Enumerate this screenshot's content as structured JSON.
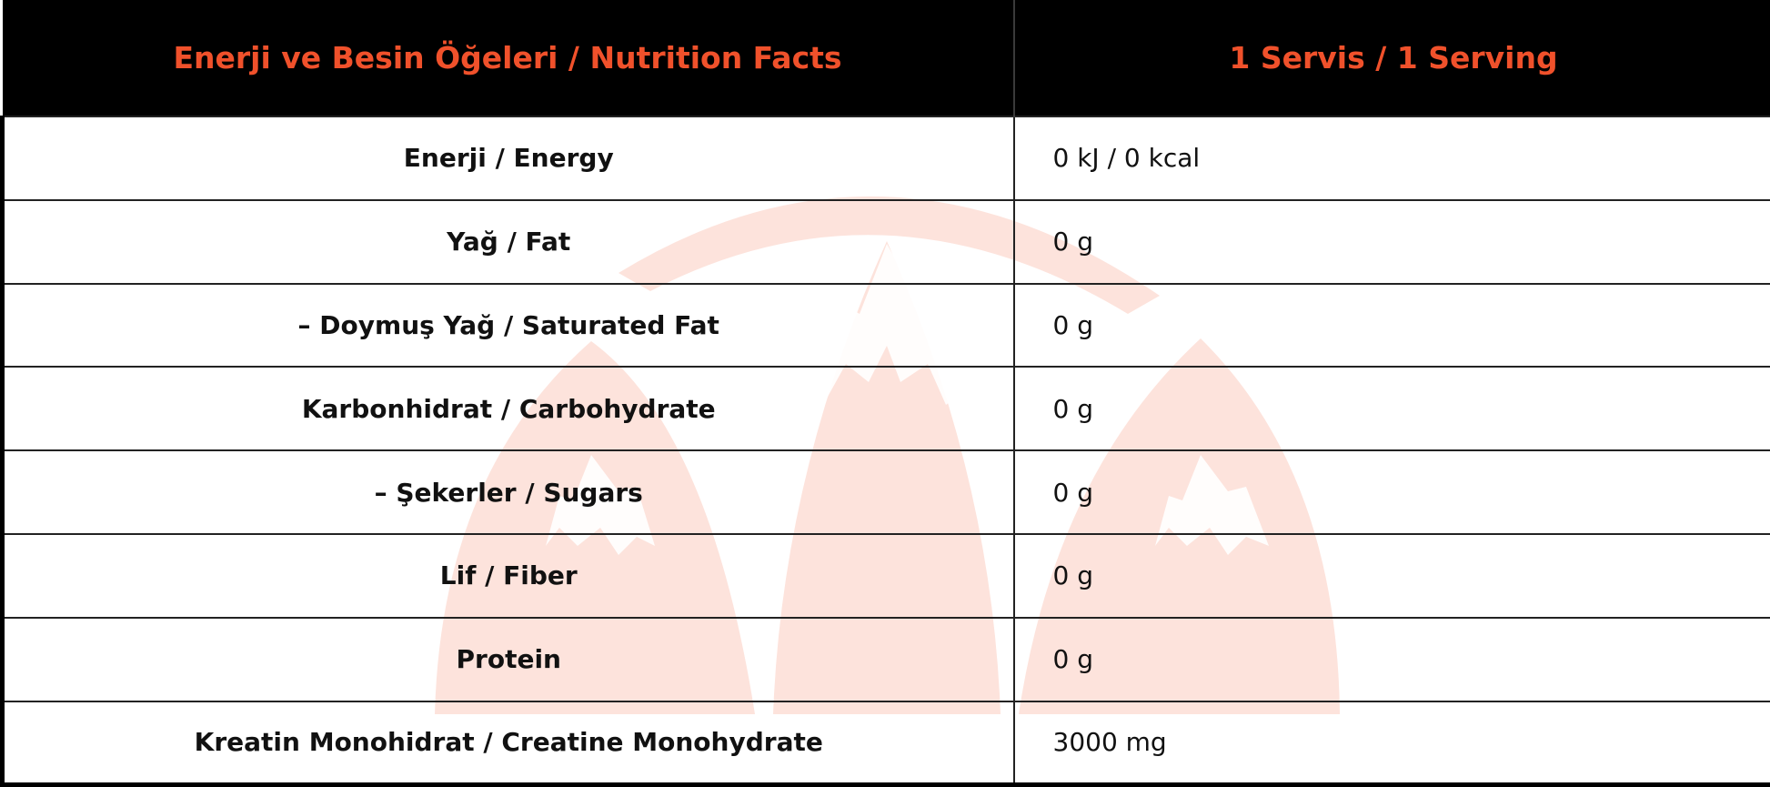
{
  "header": {
    "col_nutrient": "Enerji ve Besin Öğeleri / Nutrition Facts",
    "col_serving": "1 Servis / 1 Serving"
  },
  "rows": [
    {
      "label": "Enerji / Energy",
      "value": "0 kJ / 0 kcal"
    },
    {
      "label": "Yağ / Fat",
      "value": "0 g"
    },
    {
      "label": "– Doymuş Yağ / Saturated Fat",
      "value": "0 g"
    },
    {
      "label": "Karbonhidrat / Carbohydrate",
      "value": "0 g"
    },
    {
      "label": "– Şekerler / Sugars",
      "value": "0 g"
    },
    {
      "label": "Lif / Fiber",
      "value": "0 g"
    },
    {
      "label": "Protein",
      "value": "0 g"
    },
    {
      "label": "Kreatin Monohidrat / Creatine Monohydrate",
      "value": "3000 mg"
    }
  ],
  "colors": {
    "header_background": "#000000",
    "header_text": "#f0512b",
    "watermark": "#fde3dc"
  },
  "icons": {
    "watermark": "mountain-logo-icon"
  }
}
